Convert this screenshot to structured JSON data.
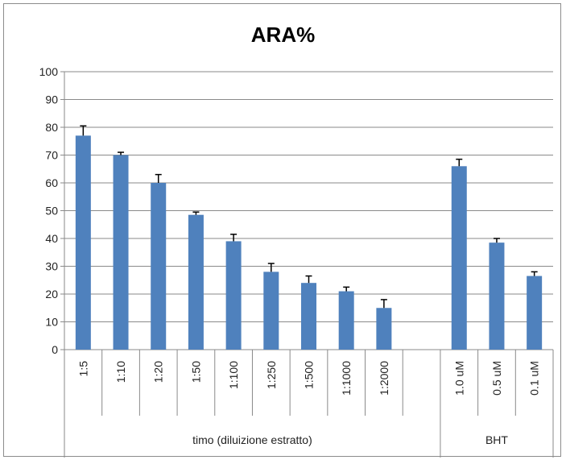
{
  "chart_data": {
    "type": "bar",
    "title": "ARA%",
    "xlabel": "",
    "ylabel": "",
    "ylim": [
      0,
      100
    ],
    "yticks": [
      0,
      10,
      20,
      30,
      40,
      50,
      60,
      70,
      80,
      90,
      100
    ],
    "grid": true,
    "legend": "none",
    "bar_color": "#4f81bd",
    "categories": [
      "1:5",
      "1:10",
      "1:20",
      "1:50",
      "1:100",
      "1:250",
      "1:500",
      "1:1000",
      "1:2000",
      "",
      "1.0 uM",
      "0.5 uM",
      "0.1 uM"
    ],
    "values": [
      77,
      70,
      60,
      48.5,
      39,
      28,
      24,
      21,
      15,
      null,
      66,
      38.5,
      26.5
    ],
    "errors": [
      3.5,
      1,
      3,
      1,
      2.5,
      3,
      2.5,
      1.5,
      3,
      null,
      2.5,
      1.5,
      1.5
    ],
    "groups": [
      {
        "label": "timo (diluizione estratto)",
        "start": 0,
        "end": 9
      },
      {
        "label": "BHT",
        "start": 10,
        "end": 12
      }
    ]
  }
}
